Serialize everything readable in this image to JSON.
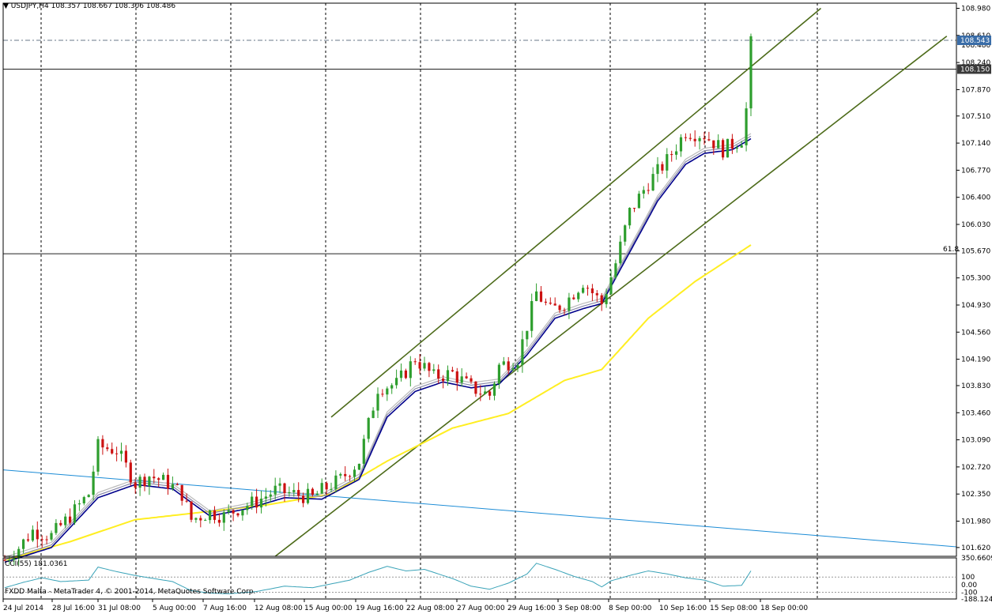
{
  "header": {
    "triangle": "▼",
    "text": "USDJPY,H4  108.357 108.667 108.306 108.486"
  },
  "cci_header": "CCI(55) 181.0361",
  "footer": "FXDD Malta - MetaTrader 4, © 2001-2014, MetaQuotes Software Corp.",
  "fib_label": "61.8",
  "colors": {
    "bull": "#2e9e2e",
    "bear": "#cc1111",
    "ema_fast": "#00008b",
    "ema_mid": "#8a8aa8",
    "ema_slow": "#bbbbbb",
    "sma_long": "#ffee22",
    "channel": "#4d6b1a",
    "trendline": "#1c8cd6",
    "cci": "#3aa3b8",
    "grid": "#000000"
  },
  "chart_data": {
    "type": "candlestick",
    "symbol": "USDJPY",
    "timeframe": "H4",
    "ohlc_last": {
      "open": 108.357,
      "high": 108.667,
      "low": 108.306,
      "close": 108.486
    },
    "y_ticks": [
      "108.980",
      "108.610",
      "108.240",
      "107.870",
      "107.510",
      "107.140",
      "106.770",
      "106.400",
      "106.030",
      "105.670",
      "105.300",
      "104.930",
      "104.560",
      "104.190",
      "103.830",
      "103.460",
      "103.090",
      "102.720",
      "102.350",
      "101.980",
      "101.620"
    ],
    "ylim": [
      101.5,
      109.05
    ],
    "price_labels": [
      {
        "text": "108.543",
        "value": 108.543,
        "style": "bid"
      },
      {
        "text": "108.150",
        "value": 108.15,
        "style": "level"
      }
    ],
    "price_hidden_labels": [
      "108.480"
    ],
    "x_ticks": [
      "24 Jul 2014",
      "28 Jul 16:00",
      "31 Jul 08:00",
      "5 Aug 00:00",
      "7 Aug 16:00",
      "12 Aug 08:00",
      "15 Aug 00:00",
      "19 Aug 16:00",
      "22 Aug 08:00",
      "27 Aug 00:00",
      "29 Aug 16:00",
      "3 Sep 08:00",
      "8 Sep 00:00",
      "10 Sep 16:00",
      "15 Sep 08:00",
      "18 Sep 00:00"
    ],
    "horizontal_levels": [
      {
        "value": 105.63,
        "label": "61.8"
      },
      {
        "value": 108.15
      },
      {
        "value": 108.543
      }
    ],
    "channel": {
      "upper": [
        {
          "bar": 70,
          "value": 103.4
        },
        {
          "bar": 175,
          "value": 108.98
        }
      ],
      "lower": [
        {
          "bar": 58,
          "value": 101.5
        },
        {
          "bar": 202,
          "value": 108.6
        }
      ]
    },
    "trendline": [
      {
        "bar": 0,
        "value": 102.68
      },
      {
        "bar": 202,
        "value": 101.63
      }
    ],
    "price_path": [
      [
        0,
        101.45
      ],
      [
        3,
        101.62
      ],
      [
        6,
        101.85
      ],
      [
        10,
        101.78
      ],
      [
        14,
        102.05
      ],
      [
        18,
        102.35
      ],
      [
        20,
        103.0
      ],
      [
        24,
        102.95
      ],
      [
        28,
        102.5
      ],
      [
        31,
        102.6
      ],
      [
        35,
        102.5
      ],
      [
        38,
        102.35
      ],
      [
        40,
        102.0
      ],
      [
        44,
        102.1
      ],
      [
        47,
        102.05
      ],
      [
        50,
        102.15
      ],
      [
        54,
        102.25
      ],
      [
        58,
        102.4
      ],
      [
        62,
        102.35
      ],
      [
        66,
        102.3
      ],
      [
        68,
        102.4
      ],
      [
        72,
        102.55
      ],
      [
        76,
        102.8
      ],
      [
        80,
        103.8
      ],
      [
        84,
        103.85
      ],
      [
        88,
        104.2
      ],
      [
        92,
        103.95
      ],
      [
        96,
        104.0
      ],
      [
        100,
        103.8
      ],
      [
        104,
        103.7
      ],
      [
        106,
        104.1
      ],
      [
        110,
        104.2
      ],
      [
        114,
        105.1
      ],
      [
        117,
        104.85
      ],
      [
        120,
        104.95
      ],
      [
        124,
        105.25
      ],
      [
        128,
        104.95
      ],
      [
        131,
        105.5
      ],
      [
        134,
        106.2
      ],
      [
        138,
        106.6
      ],
      [
        142,
        106.9
      ],
      [
        146,
        107.3
      ],
      [
        150,
        107.25
      ],
      [
        154,
        107.05
      ],
      [
        158,
        107.2
      ],
      [
        159,
        107.6
      ],
      [
        160,
        108.5
      ]
    ],
    "ema_path": [
      [
        0,
        101.42
      ],
      [
        10,
        101.62
      ],
      [
        20,
        102.3
      ],
      [
        28,
        102.48
      ],
      [
        36,
        102.42
      ],
      [
        44,
        102.05
      ],
      [
        52,
        102.15
      ],
      [
        60,
        102.3
      ],
      [
        68,
        102.28
      ],
      [
        76,
        102.55
      ],
      [
        82,
        103.4
      ],
      [
        88,
        103.75
      ],
      [
        94,
        103.88
      ],
      [
        100,
        103.8
      ],
      [
        106,
        103.85
      ],
      [
        112,
        104.25
      ],
      [
        118,
        104.75
      ],
      [
        124,
        104.88
      ],
      [
        128,
        104.95
      ],
      [
        134,
        105.65
      ],
      [
        140,
        106.35
      ],
      [
        146,
        106.85
      ],
      [
        150,
        107.0
      ],
      [
        156,
        107.05
      ],
      [
        160,
        107.2
      ]
    ],
    "sma_path": [
      [
        0,
        101.45
      ],
      [
        14,
        101.7
      ],
      [
        28,
        102.0
      ],
      [
        42,
        102.1
      ],
      [
        56,
        102.2
      ],
      [
        70,
        102.35
      ],
      [
        82,
        102.8
      ],
      [
        96,
        103.25
      ],
      [
        108,
        103.45
      ],
      [
        120,
        103.9
      ],
      [
        128,
        104.05
      ],
      [
        138,
        104.75
      ],
      [
        148,
        105.25
      ],
      [
        160,
        105.75
      ]
    ],
    "cci": {
      "name": "CCI(55)",
      "current": 181.0361,
      "y_ticks": [
        "350.6609",
        "100",
        "0.00",
        "-100",
        "-188.1245"
      ],
      "path": [
        [
          0,
          -40
        ],
        [
          4,
          30
        ],
        [
          8,
          90
        ],
        [
          12,
          40
        ],
        [
          18,
          60
        ],
        [
          20,
          230
        ],
        [
          24,
          170
        ],
        [
          28,
          120
        ],
        [
          32,
          80
        ],
        [
          36,
          40
        ],
        [
          40,
          -80
        ],
        [
          44,
          -110
        ],
        [
          48,
          -120
        ],
        [
          54,
          -90
        ],
        [
          60,
          -20
        ],
        [
          66,
          -40
        ],
        [
          70,
          10
        ],
        [
          74,
          60
        ],
        [
          78,
          160
        ],
        [
          82,
          240
        ],
        [
          86,
          180
        ],
        [
          90,
          200
        ],
        [
          96,
          80
        ],
        [
          100,
          -20
        ],
        [
          104,
          -60
        ],
        [
          108,
          20
        ],
        [
          112,
          140
        ],
        [
          114,
          280
        ],
        [
          118,
          200
        ],
        [
          122,
          110
        ],
        [
          126,
          40
        ],
        [
          128,
          -30
        ],
        [
          130,
          50
        ],
        [
          134,
          120
        ],
        [
          138,
          180
        ],
        [
          142,
          140
        ],
        [
          146,
          90
        ],
        [
          150,
          60
        ],
        [
          154,
          -20
        ],
        [
          158,
          -10
        ],
        [
          160,
          181
        ]
      ]
    }
  }
}
